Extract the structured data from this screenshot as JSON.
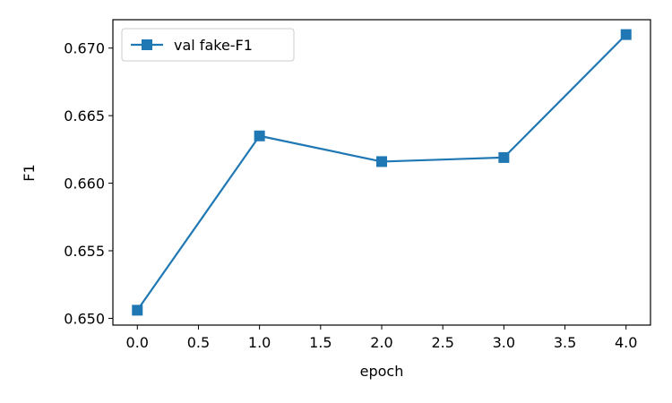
{
  "chart_data": {
    "type": "line",
    "title": "",
    "xlabel": "epoch",
    "ylabel": "F1",
    "xlim": [
      -0.2,
      4.2
    ],
    "ylim": [
      0.6495,
      0.6721
    ],
    "xticks": [
      0.0,
      0.5,
      1.0,
      1.5,
      2.0,
      2.5,
      3.0,
      3.5,
      4.0
    ],
    "xtick_labels": [
      "0.0",
      "0.5",
      "1.0",
      "1.5",
      "2.0",
      "2.5",
      "3.0",
      "3.5",
      "4.0"
    ],
    "yticks": [
      0.65,
      0.655,
      0.66,
      0.665,
      0.67
    ],
    "ytick_labels": [
      "0.650",
      "0.655",
      "0.660",
      "0.665",
      "0.670"
    ],
    "grid": false,
    "legend_position": "upper-left",
    "series": [
      {
        "name": "val fake-F1",
        "color": "#1f77b4",
        "marker": "square",
        "x": [
          0,
          1,
          2,
          3,
          4
        ],
        "y": [
          0.6506,
          0.6635,
          0.6616,
          0.6619,
          0.671
        ]
      }
    ]
  }
}
